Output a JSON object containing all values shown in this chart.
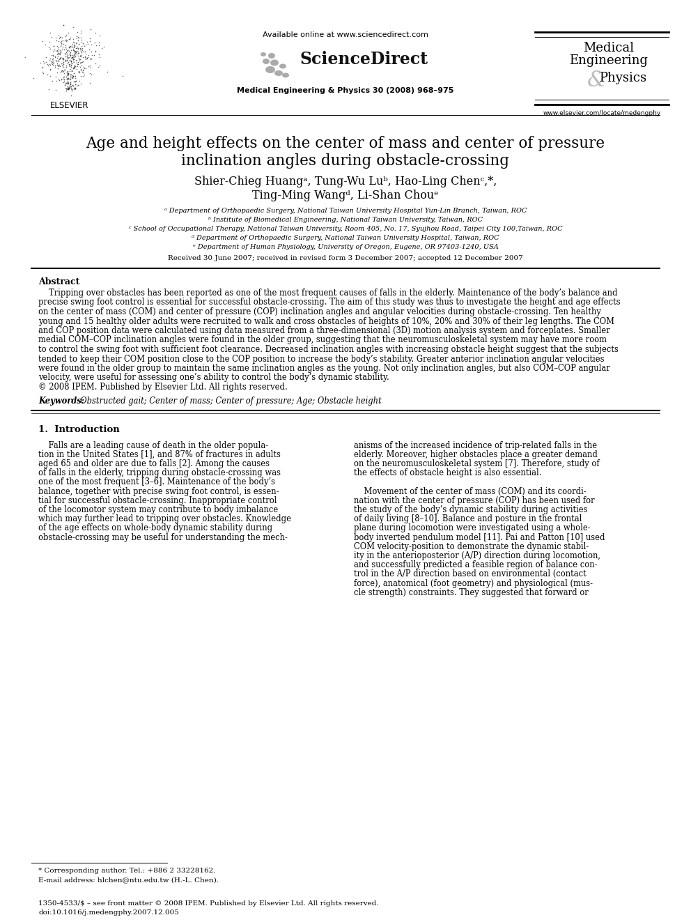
{
  "page_bg": "#ffffff",
  "available_online": "Available online at www.sciencedirect.com",
  "sciencedirect_text": "ScienceDirect",
  "journal_ref": "Medical Engineering & Physics 30 (2008) 968–975",
  "journal_title_line1": "Medical",
  "journal_title_line2": "Engineering",
  "journal_amp": "&",
  "journal_title_line3": "Physics",
  "journal_url": "www.elsevier.com/locate/medengphy",
  "elsevier_text": "ELSEVIER",
  "article_title_line1": "Age and height effects on the center of mass and center of pressure",
  "article_title_line2": "inclination angles during obstacle-crossing",
  "authors_line1": "Shier-Chieg Huangᵃ, Tung-Wu Luᵇ, Hao-Ling Chenᶜ,*,",
  "authors_line2": "Ting-Ming Wangᵈ, Li-Shan Chouᵉ",
  "affil_a": "ᵃ Department of Orthopaedic Surgery, National Taiwan University Hospital Yun-Lin Branch, Taiwan, ROC",
  "affil_b": "ᵇ Institute of Biomedical Engineering, National Taiwan University, Taiwan, ROC",
  "affil_c": "ᶜ School of Occupational Therapy, National Taiwan University, Room 405, No. 17, Syujhou Road, Taipei City 100,Taiwan, ROC",
  "affil_d": "ᵈ Department of Orthopaedic Surgery, National Taiwan University Hospital, Taiwan, ROC",
  "affil_e": "ᵉ Department of Human Physiology, University of Oregon, Eugene, OR 97403-1240, USA",
  "received": "Received 30 June 2007; received in revised form 3 December 2007; accepted 12 December 2007",
  "abstract_heading": "Abstract",
  "abstract_text_lines": [
    "Tripping over obstacles has been reported as one of the most frequent causes of falls in the elderly. Maintenance of the body’s balance and",
    "precise swing foot control is essential for successful obstacle-crossing. The aim of this study was thus to investigate the height and age effects",
    "on the center of mass (COM) and center of pressure (COP) inclination angles and angular velocities during obstacle-crossing. Ten healthy",
    "young and 15 healthy older adults were recruited to walk and cross obstacles of heights of 10%, 20% and 30% of their leg lengths. The COM",
    "and COP position data were calculated using data measured from a three-dimensional (3D) motion analysis system and forceplates. Smaller",
    "medial COM–COP inclination angles were found in the older group, suggesting that the neuromusculoskeletal system may have more room",
    "to control the swing foot with sufficient foot clearance. Decreased inclination angles with increasing obstacle height suggest that the subjects",
    "tended to keep their COM position close to the COP position to increase the body’s stability. Greater anterior inclination angular velocities",
    "were found in the older group to maintain the same inclination angles as the young. Not only inclination angles, but also COM–COP angular",
    "velocity, were useful for assessing one’s ability to control the body’s dynamic stability.",
    "© 2008 IPEM. Published by Elsevier Ltd. All rights reserved."
  ],
  "keywords_label": "Keywords:",
  "keywords_text": "  Obstructed gait; Center of mass; Center of pressure; Age; Obstacle height",
  "section1_title": "1.  Introduction",
  "intro_col1_lines": [
    "    Falls are a leading cause of death in the older popula-",
    "tion in the United States [1], and 87% of fractures in adults",
    "aged 65 and older are due to falls [2]. Among the causes",
    "of falls in the elderly, tripping during obstacle-crossing was",
    "one of the most frequent [3–6]. Maintenance of the body’s",
    "balance, together with precise swing foot control, is essen-",
    "tial for successful obstacle-crossing. Inappropriate control",
    "of the locomotor system may contribute to body imbalance",
    "which may further lead to tripping over obstacles. Knowledge",
    "of the age effects on whole-body dynamic stability during",
    "obstacle-crossing may be useful for understanding the mech-"
  ],
  "intro_col2_lines": [
    "anisms of the increased incidence of trip-related falls in the",
    "elderly. Moreover, higher obstacles place a greater demand",
    "on the neuromusculoskeletal system [7]. Therefore, study of",
    "the effects of obstacle height is also essential.",
    "",
    "    Movement of the center of mass (COM) and its coordi-",
    "nation with the center of pressure (COP) has been used for",
    "the study of the body’s dynamic stability during activities",
    "of daily living [8–10]. Balance and posture in the frontal",
    "plane during locomotion were investigated using a whole-",
    "body inverted pendulum model [11]. Pai and Patton [10] used",
    "COM velocity-position to demonstrate the dynamic stabil-",
    "ity in the anterioposterior (A/P) direction during locomotion,",
    "and successfully predicted a feasible region of balance con-",
    "trol in the A/P direction based on environmental (contact",
    "force), anatomical (foot geometry) and physiological (mus-",
    "cle strength) constraints. They suggested that forward or"
  ],
  "footnote_line1": "* Corresponding author. Tel.: +886 2 33228162.",
  "footnote_line2": "E-mail address: hlchen@ntu.edu.tw (H.-L. Chen).",
  "footer_line1": "1350-4533/$ – see front matter © 2008 IPEM. Published by Elsevier Ltd. All rights reserved.",
  "footer_line2": "doi:10.1016/j.medengphy.2007.12.005"
}
